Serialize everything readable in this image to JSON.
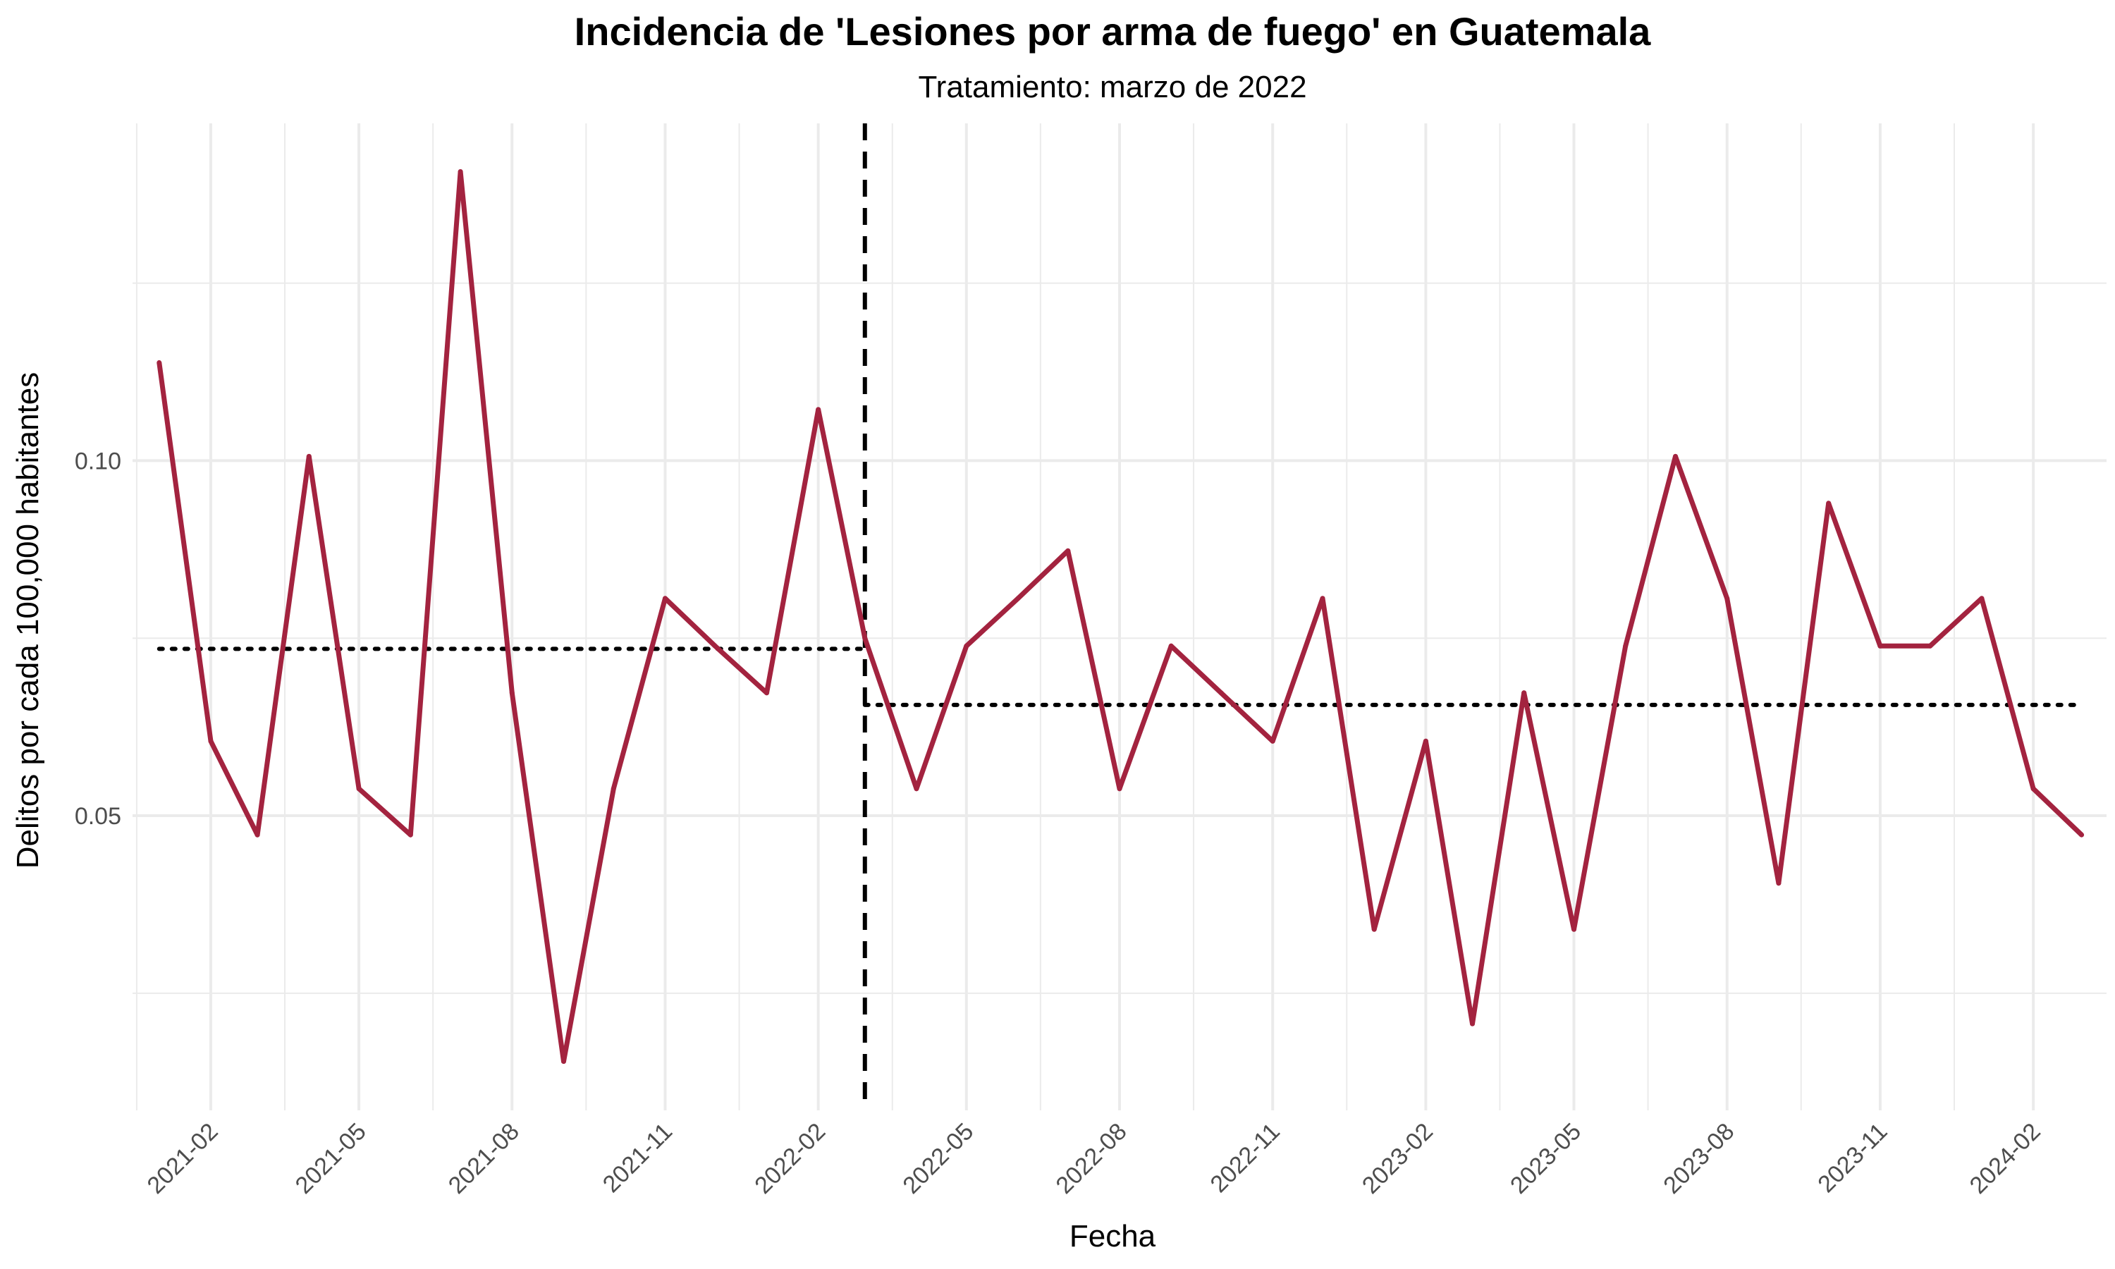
{
  "chart_data": {
    "type": "line",
    "title": "Incidencia de 'Lesiones por arma de fuego' en Guatemala",
    "subtitle": "Tratamiento: marzo de 2022",
    "xlabel": "Fecha",
    "ylabel": "Delitos por cada 100,000 habitantes",
    "x": [
      "2021-01",
      "2021-02",
      "2021-03",
      "2021-04",
      "2021-05",
      "2021-06",
      "2021-07",
      "2021-08",
      "2021-09",
      "2021-10",
      "2021-11",
      "2021-12",
      "2022-01",
      "2022-02",
      "2022-03",
      "2022-04",
      "2022-05",
      "2022-06",
      "2022-07",
      "2022-08",
      "2022-09",
      "2022-10",
      "2022-11",
      "2022-12",
      "2023-01",
      "2023-02",
      "2023-03",
      "2023-04",
      "2023-05",
      "2023-06",
      "2023-07",
      "2023-08",
      "2023-09",
      "2023-10",
      "2023-11",
      "2023-12",
      "2024-01",
      "2024-02",
      "2024-03"
    ],
    "series": [
      {
        "values": [
          0.1138,
          0.0605,
          0.0473,
          0.1006,
          0.0538,
          0.0473,
          0.1407,
          0.0673,
          0.0154,
          0.0538,
          0.0806,
          0.0739,
          0.0673,
          0.1072,
          0.075,
          0.0538,
          0.0739,
          0.0806,
          0.0873,
          0.0538,
          0.0739,
          0.0673,
          0.0605,
          0.0806,
          0.034,
          0.0605,
          0.0207,
          0.0673,
          0.034,
          0.0739,
          0.1006,
          0.0806,
          0.0405,
          0.094,
          0.0739,
          0.0739,
          0.0806,
          0.0538,
          0.0473
        ]
      }
    ],
    "treatment_date": "2022-03",
    "mean_before": 0.0735,
    "mean_after": 0.0656,
    "x_ticks": [
      "2021-02",
      "2021-05",
      "2021-08",
      "2021-11",
      "2022-02",
      "2022-05",
      "2022-08",
      "2022-11",
      "2023-02",
      "2023-05",
      "2023-08",
      "2023-11",
      "2024-02"
    ],
    "y_ticks": [
      0.05,
      0.1
    ],
    "y_tick_labels": [
      "0.05",
      "0.10"
    ],
    "ylim": [
      0.0085,
      0.1475
    ],
    "xlim": [
      "2020-12-16",
      "2024-03-16"
    ],
    "grid": true,
    "legend": "none",
    "line_color": "#a3233f"
  }
}
